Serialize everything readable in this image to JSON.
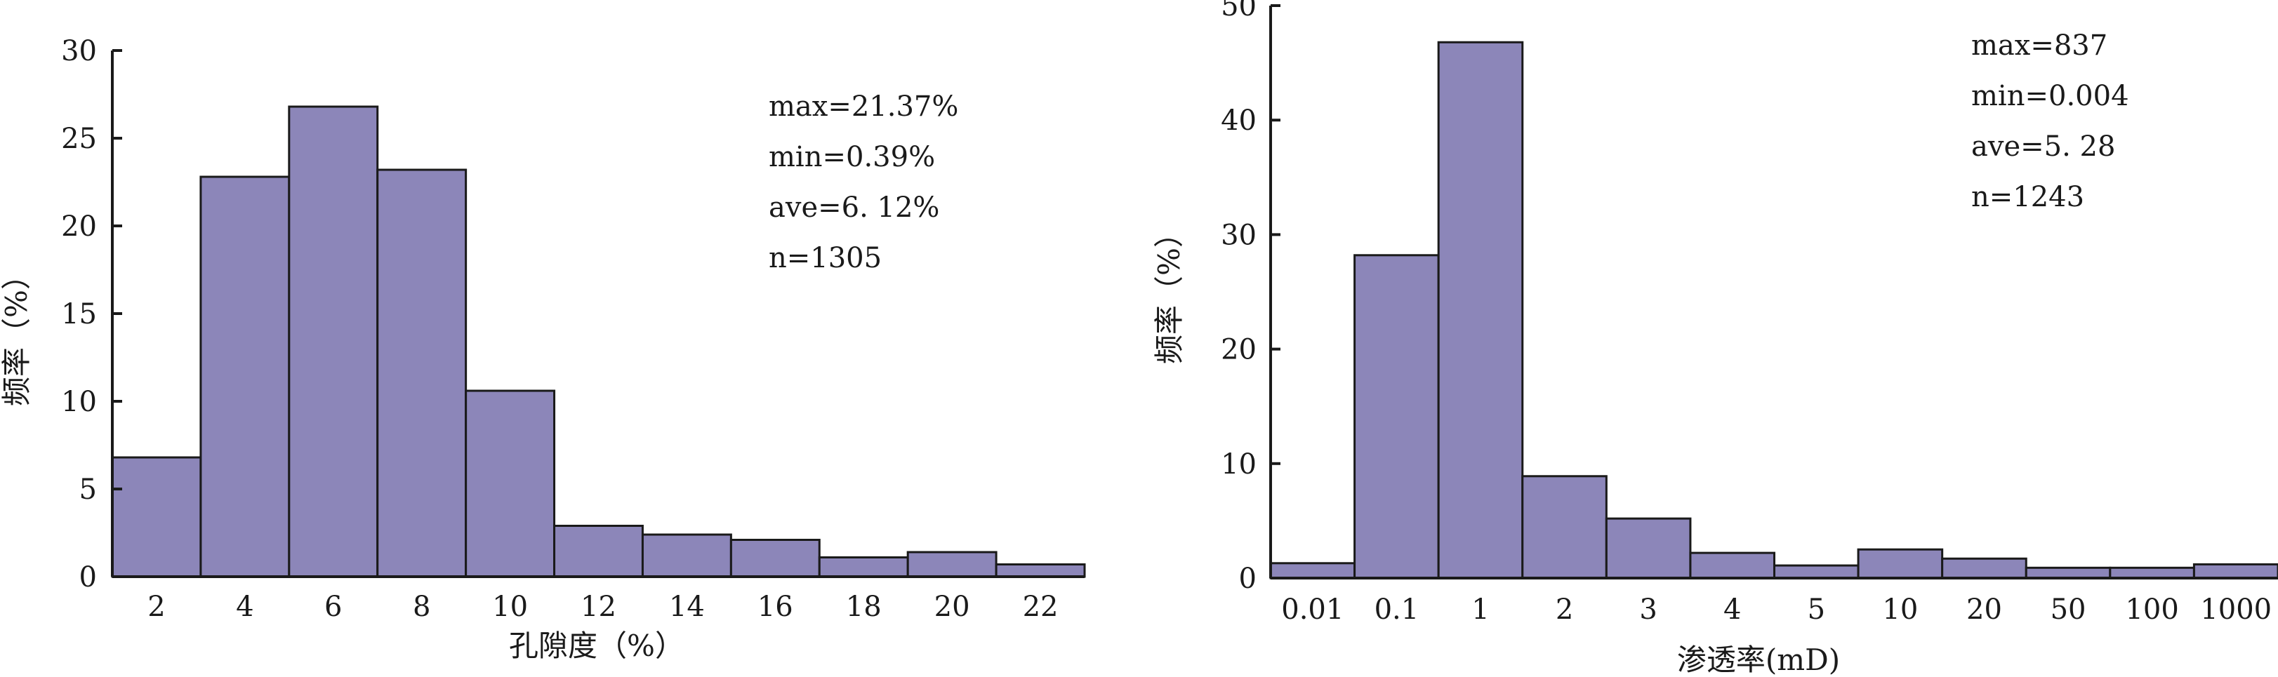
{
  "chart_data": [
    {
      "type": "bar",
      "title": "",
      "xlabel": "孔隙度（%）",
      "ylabel": "频率（%）",
      "ylim": [
        0,
        30
      ],
      "yticks": [
        0,
        5,
        10,
        15,
        20,
        25,
        30
      ],
      "categories": [
        "2",
        "4",
        "6",
        "8",
        "10",
        "12",
        "14",
        "16",
        "18",
        "20",
        "22"
      ],
      "values": [
        6.8,
        22.8,
        26.8,
        23.2,
        10.6,
        2.9,
        2.4,
        2.1,
        1.1,
        1.4,
        0.7
      ],
      "stats": [
        "max=21.37%",
        "min=0.39%",
        "ave=6. 12%",
        "n=1305"
      ]
    },
    {
      "type": "bar",
      "title": "",
      "xlabel": "渗透率(mD)",
      "ylabel": "频率（%）",
      "ylim": [
        0,
        50
      ],
      "yticks": [
        0,
        10,
        20,
        30,
        40,
        50
      ],
      "categories": [
        "0.01",
        "0.1",
        "1",
        "2",
        "3",
        "4",
        "5",
        "10",
        "20",
        "50",
        "100",
        "1000"
      ],
      "values": [
        1.3,
        28.2,
        46.8,
        8.9,
        5.2,
        2.2,
        1.1,
        2.5,
        1.7,
        0.9,
        0.9,
        1.2
      ],
      "stats": [
        "max=837",
        "min=0.004",
        "ave=5. 28",
        "n=1243"
      ]
    }
  ]
}
